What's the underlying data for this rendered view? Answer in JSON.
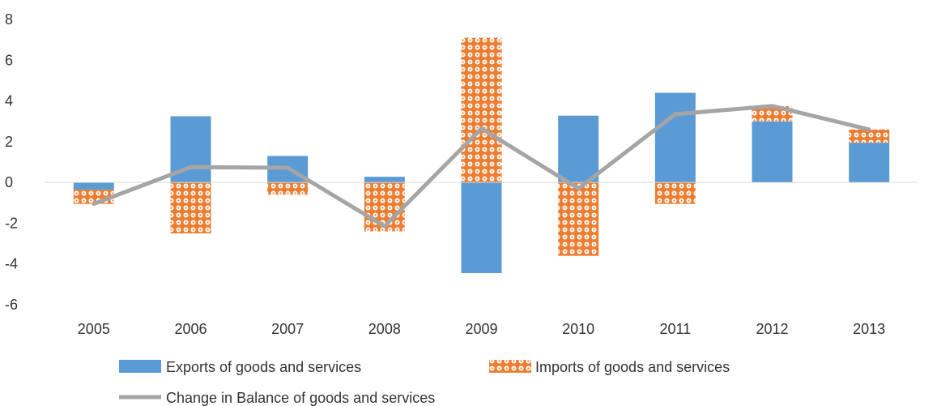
{
  "chart_data": {
    "type": "bar",
    "categories": [
      "2005",
      "2006",
      "2007",
      "2008",
      "2009",
      "2010",
      "2011",
      "2012",
      "2013"
    ],
    "series": [
      {
        "name": "Exports of goods and services",
        "kind": "stacked-bar",
        "color": "#5B9BD5",
        "values": [
          -0.35,
          3.25,
          1.3,
          0.28,
          -4.45,
          3.28,
          4.4,
          3.0,
          1.95
        ]
      },
      {
        "name": "Imports of goods and services",
        "kind": "stacked-bar",
        "pattern": "orange-dots",
        "color": "#ED7D31",
        "values": [
          -0.7,
          -2.5,
          -0.6,
          -2.4,
          7.1,
          -3.6,
          -1.05,
          0.75,
          0.65
        ]
      },
      {
        "name": "Change in Balance of goods and services",
        "kind": "line",
        "color": "#A5A5A5",
        "values": [
          -1.05,
          0.75,
          0.72,
          -2.15,
          2.65,
          -0.3,
          3.35,
          3.75,
          2.6
        ]
      }
    ],
    "ylim": [
      -6,
      8
    ],
    "yticks": [
      "-6",
      "-4",
      "-2",
      "0",
      "2",
      "4",
      "6",
      "8"
    ],
    "grid": false,
    "legend_position": "bottom",
    "title": "",
    "xlabel": "",
    "ylabel": ""
  }
}
